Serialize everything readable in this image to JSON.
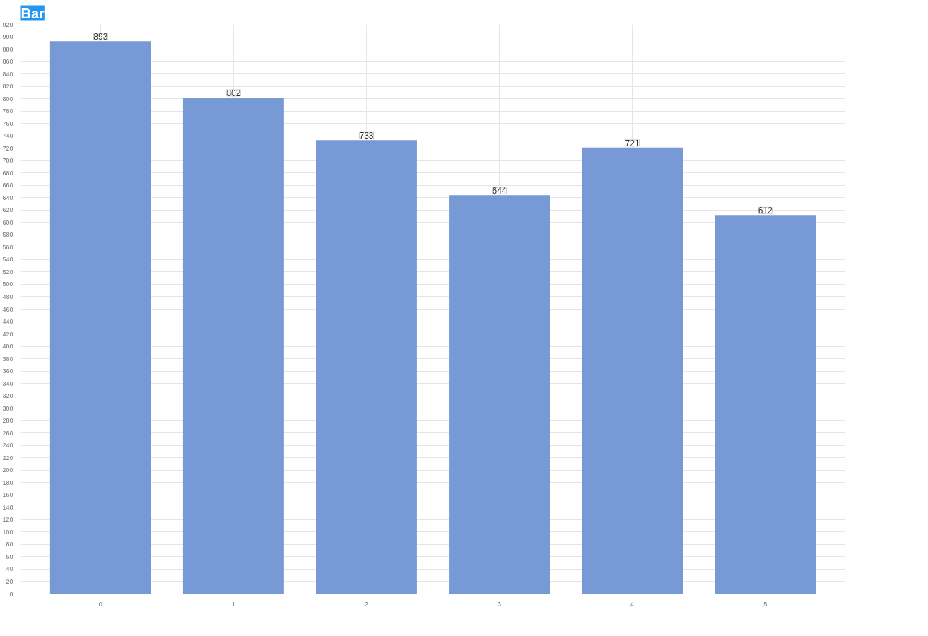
{
  "chart_data": {
    "type": "bar",
    "title": "Bar",
    "categories": [
      "0",
      "1",
      "2",
      "3",
      "4",
      "5"
    ],
    "values": [
      893,
      802,
      733,
      644,
      721,
      612
    ],
    "color": "#7799d6",
    "ylim": [
      0,
      920
    ],
    "yticks": [
      0,
      20,
      40,
      60,
      80,
      100,
      120,
      140,
      160,
      180,
      200,
      220,
      240,
      260,
      280,
      300,
      320,
      340,
      360,
      380,
      400,
      420,
      440,
      460,
      480,
      500,
      520,
      540,
      560,
      580,
      600,
      620,
      640,
      660,
      680,
      700,
      720,
      740,
      760,
      780,
      800,
      820,
      840,
      860,
      880,
      900,
      920
    ],
    "grid": true,
    "data_labels": true
  }
}
